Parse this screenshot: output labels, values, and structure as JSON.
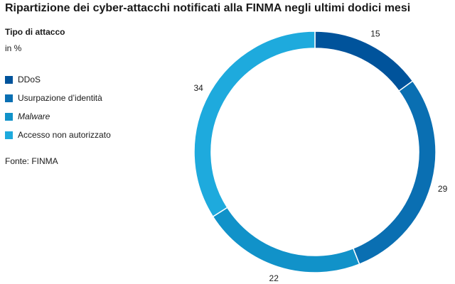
{
  "chart_data": {
    "type": "pie",
    "title": "Ripartizione dei cyber-attacchi notificati alla FINMA negli ultimi dodici mesi",
    "subtitle": "Tipo di attacco",
    "unit": "in %",
    "source": "Fonte: FINMA",
    "categories": [
      "DDoS",
      "Usurpazione d’identità",
      "Malware",
      "Accesso non autorizzato"
    ],
    "values": [
      15,
      29,
      22,
      34
    ],
    "colors": [
      "#00539b",
      "#0a6fb2",
      "#1192c9",
      "#1eaadd"
    ],
    "italic_categories": [
      "Malware"
    ],
    "donut": true,
    "legend_position": "left"
  }
}
